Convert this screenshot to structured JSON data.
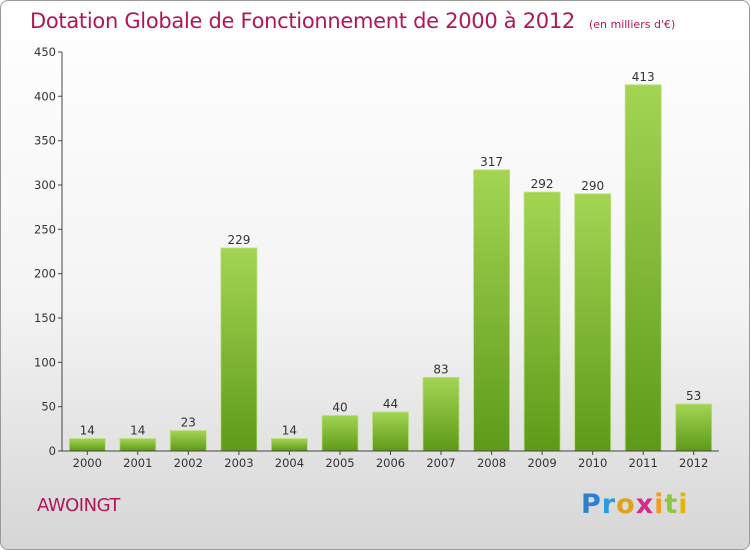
{
  "title": "Dotation Globale de Fonctionnement de 2000 à 2012",
  "unit": "(en milliers d'€)",
  "commune": "AWOINGT",
  "logo": {
    "icon": "proxiti-logo",
    "letters": [
      "P",
      "r",
      "o",
      "x",
      "i",
      "t",
      "i"
    ]
  },
  "colors": {
    "title": "#b0175b",
    "bar_light": "#9fd14d",
    "bar_dark": "#5f9c1a"
  },
  "chart_data": {
    "type": "bar",
    "categories": [
      "2000",
      "2001",
      "2002",
      "2003",
      "2004",
      "2005",
      "2006",
      "2007",
      "2008",
      "2009",
      "2010",
      "2011",
      "2012"
    ],
    "values": [
      14,
      14,
      23,
      229,
      14,
      40,
      44,
      83,
      317,
      292,
      290,
      413,
      53
    ],
    "ylim": [
      0,
      450
    ],
    "yticks": [
      0,
      50,
      100,
      150,
      200,
      250,
      300,
      350,
      400,
      450
    ],
    "grid": false,
    "data_labels": true
  }
}
